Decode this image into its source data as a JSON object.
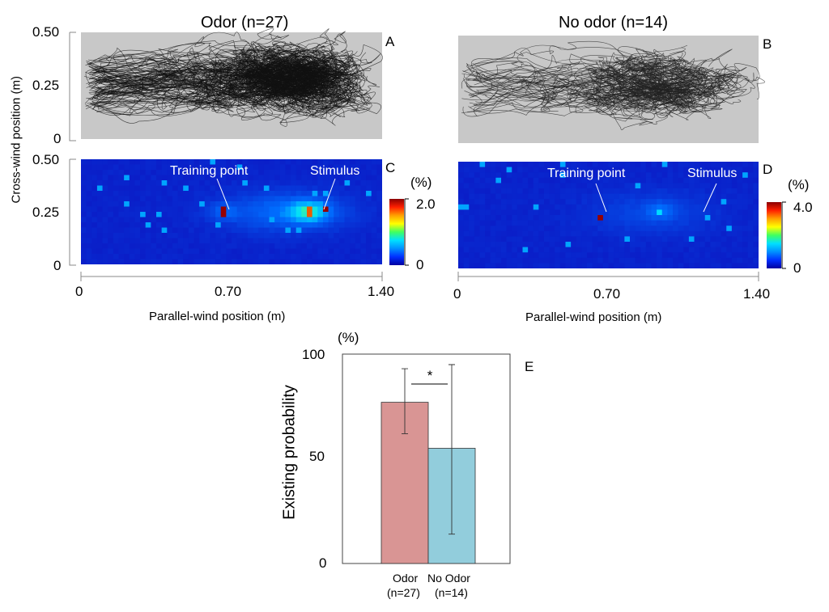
{
  "panels": {
    "A": {
      "letter": "A",
      "title": "Odor (n=27)"
    },
    "B": {
      "letter": "B",
      "title": "No odor (n=14)"
    },
    "C": {
      "letter": "C",
      "training_label": "Training point",
      "stimulus_label": "Stimulus",
      "colorbar": {
        "unit": "(%)",
        "max": "2.0",
        "min": "0"
      }
    },
    "D": {
      "letter": "D",
      "training_label": "Training point",
      "stimulus_label": "Stimulus",
      "colorbar": {
        "unit": "(%)",
        "max": "4.0",
        "min": "0"
      }
    },
    "E": {
      "letter": "E"
    }
  },
  "axes": {
    "ylabel": "Cross-wind position (m)",
    "xlabel": "Parallel-wind position (m)",
    "yticks": [
      "0.50",
      "0.25",
      "0"
    ],
    "xticks_left": [
      "0",
      "0.70",
      "1.40"
    ],
    "xticks_right": [
      "0",
      "0.70",
      "1.40"
    ]
  },
  "chart_data": [
    {
      "type": "heatmap",
      "panel": "C",
      "title": "Odor (n=27)",
      "xlabel": "Parallel-wind position (m)",
      "ylabel": "Cross-wind position (m)",
      "xlim": [
        0,
        1.4
      ],
      "ylim": [
        0,
        0.5
      ],
      "color_range": [
        0,
        2.0
      ],
      "unit": "%",
      "hotspots": [
        {
          "x": 0.66,
          "y": 0.25,
          "value": 2.0
        },
        {
          "x": 1.07,
          "y": 0.25,
          "value": 1.8
        },
        {
          "x": 1.14,
          "y": 0.26,
          "value": 2.0
        }
      ]
    },
    {
      "type": "heatmap",
      "panel": "D",
      "title": "No odor (n=14)",
      "xlabel": "Parallel-wind position (m)",
      "ylabel": "Cross-wind position (m)",
      "xlim": [
        0,
        1.4
      ],
      "ylim": [
        0,
        0.5
      ],
      "color_range": [
        0,
        4.0
      ],
      "unit": "%",
      "hotspots": [
        {
          "x": 0.66,
          "y": 0.24,
          "value": 4.0
        },
        {
          "x": 0.94,
          "y": 0.27,
          "value": 1.8
        }
      ]
    },
    {
      "type": "bar",
      "panel": "E",
      "unit": "(%)",
      "ylabel": "Existing probability",
      "ylim": [
        0,
        100
      ],
      "yticks": [
        "100",
        "50",
        "0"
      ],
      "categories": [
        "Odor",
        "No Odor"
      ],
      "category_sublabels": [
        "(n=27)",
        "(n=14)"
      ],
      "values": [
        77,
        55
      ],
      "error_low": [
        62,
        14
      ],
      "error_high": [
        93,
        95
      ],
      "colors": [
        "#d99594",
        "#92cddc"
      ],
      "significance": "*"
    }
  ]
}
